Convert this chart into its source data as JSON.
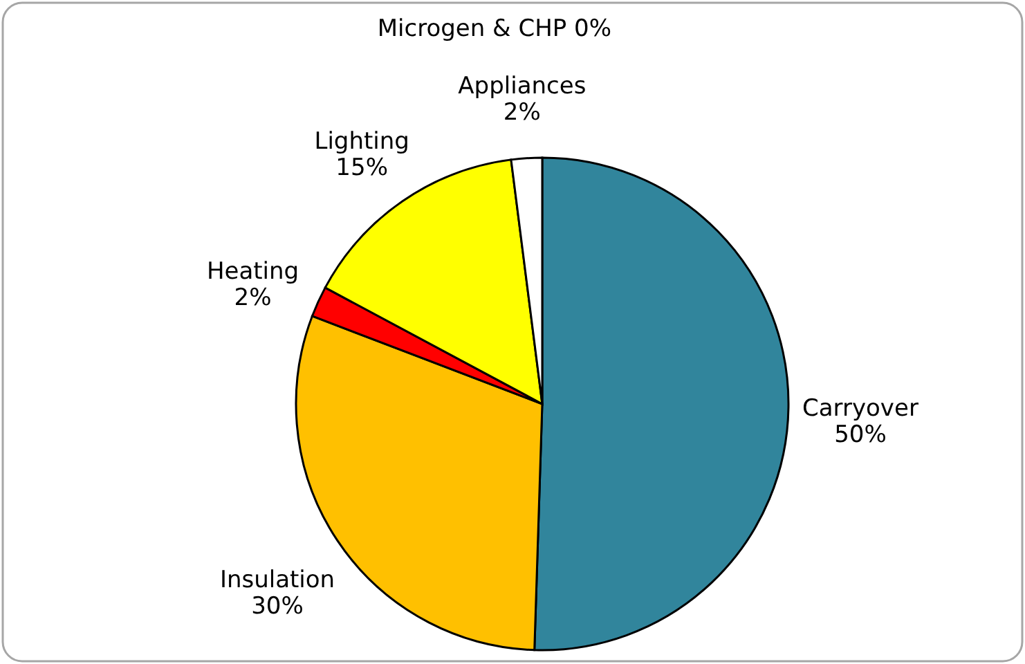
{
  "chart_data": {
    "type": "pie",
    "categories": [
      "Carryover",
      "Insulation",
      "Heating",
      "Lighting",
      "Microgen & CHP",
      "Appliances"
    ],
    "values": [
      50,
      30,
      2,
      15,
      0,
      2
    ],
    "value_labels": [
      "50%",
      "30%",
      "2%",
      "15%",
      "0%",
      "2%"
    ],
    "colors": [
      "#31859c",
      "#ffc000",
      "#ff0000",
      "#ffff00",
      "#ffffff",
      "#ffffff"
    ]
  }
}
